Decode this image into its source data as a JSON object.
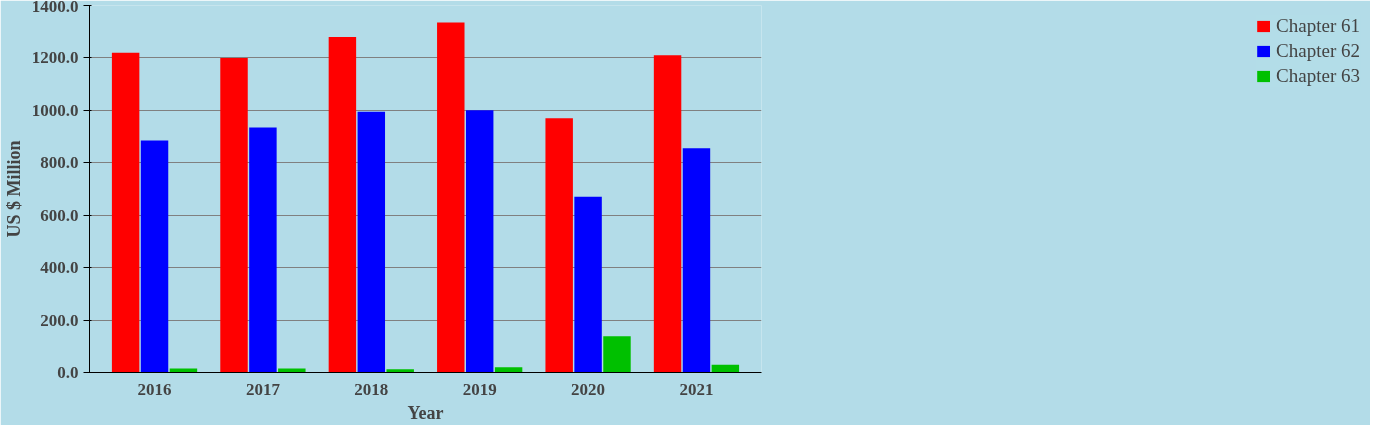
{
  "chart_data": {
    "type": "bar",
    "xlabel": "Year",
    "ylabel": "US $ Million",
    "categories": [
      "2016",
      "2017",
      "2018",
      "2019",
      "2020",
      "2021"
    ],
    "series": [
      {
        "name": "Chapter 61",
        "color": "#ff0000",
        "values": [
          1220,
          1200,
          1280,
          1335,
          970,
          1210
        ]
      },
      {
        "name": "Chapter 62",
        "color": "#0000ff",
        "values": [
          885,
          935,
          995,
          1000,
          670,
          855
        ]
      },
      {
        "name": "Chapter 63",
        "color": "#00c000",
        "values": [
          15,
          15,
          12,
          20,
          138,
          30
        ]
      }
    ],
    "ylim": [
      0,
      1400
    ],
    "yticks": [
      {
        "value": 0,
        "label": "0.0"
      },
      {
        "value": 200,
        "label": "200.0"
      },
      {
        "value": 400,
        "label": "400.0"
      },
      {
        "value": 600,
        "label": "600.0"
      },
      {
        "value": 800,
        "label": "800.0"
      },
      {
        "value": 1000,
        "label": "1000.0"
      },
      {
        "value": 1200,
        "label": "1200.0"
      },
      {
        "value": 1400,
        "label": "1400.0"
      }
    ],
    "grid": "y",
    "legend": "right"
  }
}
